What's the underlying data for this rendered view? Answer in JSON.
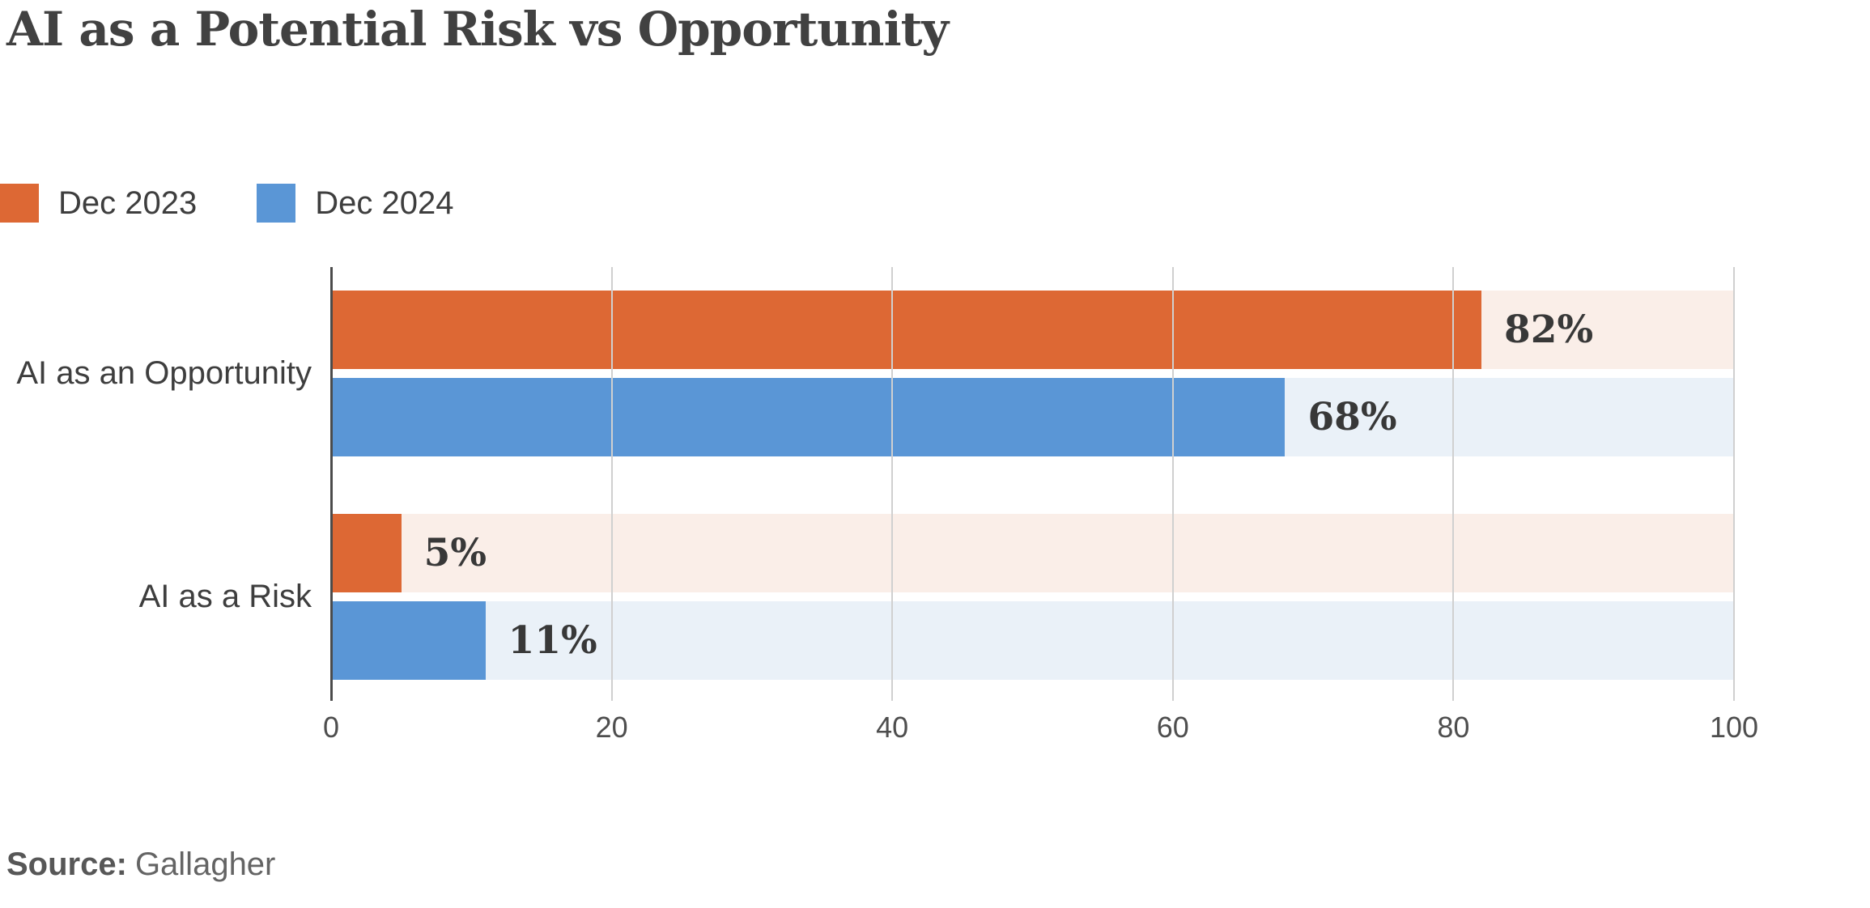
{
  "chart_data": {
    "type": "bar",
    "orientation": "horizontal",
    "title": "AI as a Potential Risk vs Opportunity",
    "categories": [
      "AI as an Opportunity",
      "AI as a Risk"
    ],
    "series": [
      {
        "name": "Dec 2023",
        "values": [
          82,
          5
        ],
        "labels": [
          "82%",
          "5%"
        ],
        "color": "#DD6834",
        "track_color": "#FAEEE8"
      },
      {
        "name": "Dec 2024",
        "values": [
          68,
          11
        ],
        "labels": [
          "68%",
          "11%"
        ],
        "color": "#5A96D6",
        "track_color": "#EAF1F8"
      }
    ],
    "xlim": [
      0,
      100
    ],
    "xticks": [
      0,
      20,
      40,
      60,
      80,
      100
    ],
    "grid": true,
    "legend_position": "top-left",
    "colors": {
      "gridline": "#d0d0d0",
      "axis": "#4b4b4b",
      "title_text": "#414141",
      "label_text": "#3e3e3e",
      "value_text": "#383838"
    }
  },
  "source": {
    "label": "Source:",
    "value": "Gallagher"
  }
}
